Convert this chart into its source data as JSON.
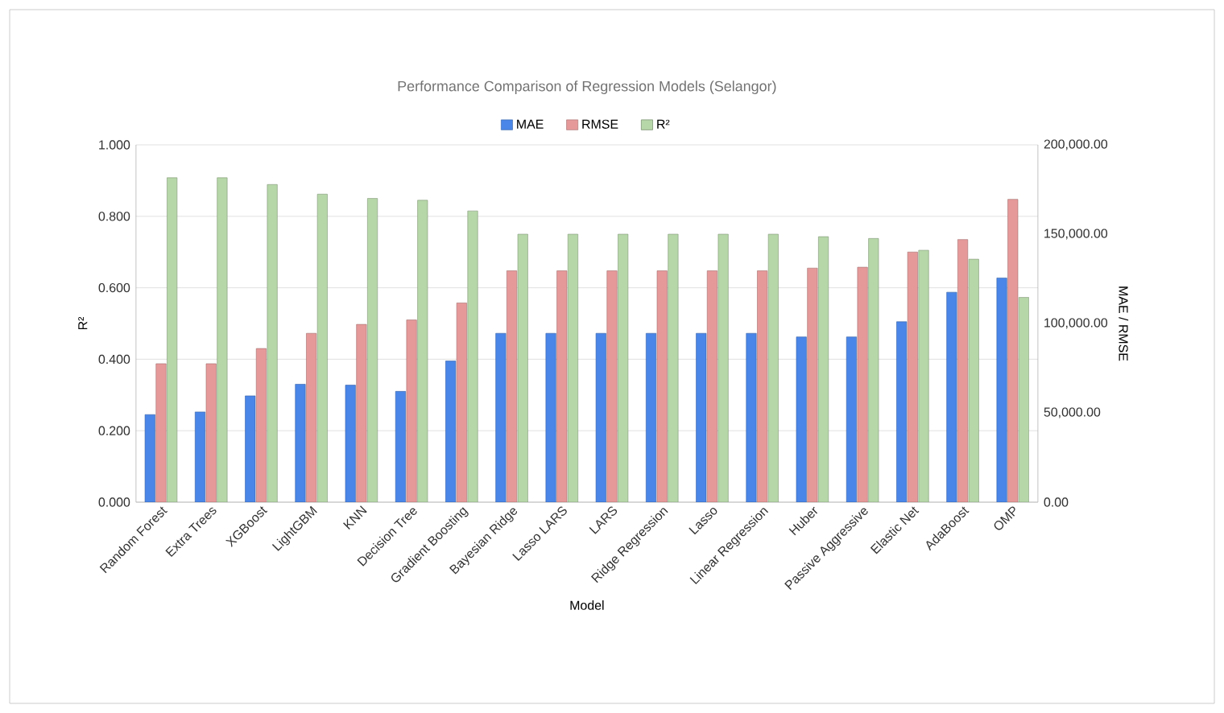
{
  "chart_data": {
    "type": "bar",
    "title": "Performance Comparison of Regression Models  (Selangor)",
    "xlabel": "Model",
    "ylabel": "R²",
    "y2label": "MAE / RMSE",
    "categories": [
      "Random Forest",
      "Extra Trees",
      "XGBoost",
      "LightGBM",
      "KNN",
      "Decision Tree",
      "Gradient Boosting",
      "Bayesian Ridge",
      "Lasso LARS",
      "LARS",
      "Ridge Regression",
      "Lasso",
      "Linear Regression",
      "Huber",
      "Passive Aggressive",
      "Elastic Net",
      "AdaBoost",
      "OMP"
    ],
    "series": [
      {
        "name": "MAE",
        "color": "#4a86e8",
        "axis": "y2",
        "values": [
          49000,
          50500,
          59500,
          66000,
          65500,
          62000,
          79000,
          94500,
          94500,
          94500,
          94500,
          94500,
          94500,
          92500,
          92500,
          101000,
          117500,
          125500
        ]
      },
      {
        "name": "RMSE",
        "color": "#e69999",
        "axis": "y2",
        "values": [
          77500,
          77500,
          86000,
          94500,
          99500,
          102000,
          111500,
          129500,
          129500,
          129500,
          129500,
          129500,
          129500,
          131000,
          131500,
          140000,
          147000,
          169500
        ]
      },
      {
        "name": "R²",
        "color": "#b6d7a8",
        "values": [
          0.908,
          0.908,
          0.889,
          0.862,
          0.85,
          0.845,
          0.815,
          0.75,
          0.75,
          0.75,
          0.75,
          0.75,
          0.75,
          0.743,
          0.738,
          0.705,
          0.68,
          0.573
        ]
      }
    ],
    "ylim": [
      0,
      1
    ],
    "yticks": [
      {
        "value": 0,
        "label": "0.000"
      },
      {
        "value": 0.2,
        "label": "0.200"
      },
      {
        "value": 0.4,
        "label": "0.400"
      },
      {
        "value": 0.6,
        "label": "0.600"
      },
      {
        "value": 0.8,
        "label": "0.800"
      },
      {
        "value": 1,
        "label": "1.000"
      }
    ],
    "y2lim": [
      0,
      200000
    ],
    "y2ticks": [
      {
        "value": 0,
        "label": "0.00"
      },
      {
        "value": 50000,
        "label": "50,000.00"
      },
      {
        "value": 100000,
        "label": "100,000.00"
      },
      {
        "value": 150000,
        "label": "150,000.00"
      },
      {
        "value": 200000,
        "label": "200,000.00"
      }
    ],
    "grid": "y",
    "legend": "top"
  }
}
